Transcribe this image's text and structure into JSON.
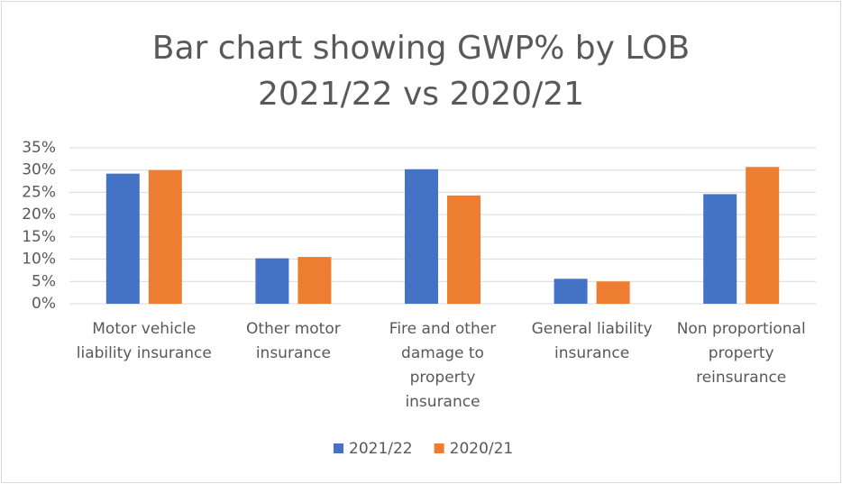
{
  "chart_data": {
    "type": "bar",
    "title": [
      "Bar chart showing GWP% by LOB",
      "2021/22 vs 2020/21"
    ],
    "categories": [
      "Motor vehicle liability insurance",
      "Other motor insurance",
      "Fire and other damage to property insurance",
      "General liability insurance",
      "Non proportional property reinsurance"
    ],
    "series": [
      {
        "name": "2021/22",
        "color": "#4472c4",
        "values": [
          29.2,
          10.2,
          30.2,
          5.6,
          24.6
        ]
      },
      {
        "name": "2020/21",
        "color": "#ed7d31",
        "values": [
          30.0,
          10.5,
          24.3,
          5.0,
          30.7
        ]
      }
    ],
    "ylim": [
      0,
      35
    ],
    "yticks": [
      {
        "value": 0,
        "label": "0%"
      },
      {
        "value": 5,
        "label": "5%"
      },
      {
        "value": 10,
        "label": "10%"
      },
      {
        "value": 15,
        "label": "15%"
      },
      {
        "value": 20,
        "label": "20%"
      },
      {
        "value": 25,
        "label": "25%"
      },
      {
        "value": 30,
        "label": "30%"
      },
      {
        "value": 35,
        "label": "35%"
      }
    ],
    "grid": true,
    "legend": "bottom"
  }
}
